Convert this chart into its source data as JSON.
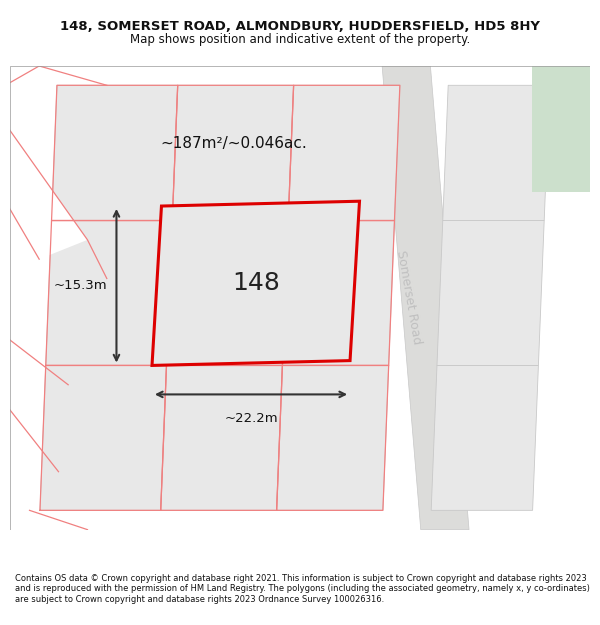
{
  "title_line1": "148, SOMERSET ROAD, ALMONDBURY, HUDDERSFIELD, HD5 8HY",
  "title_line2": "Map shows position and indicative extent of the property.",
  "footer_text": "Contains OS data © Crown copyright and database right 2021. This information is subject to Crown copyright and database rights 2023 and is reproduced with the permission of HM Land Registry. The polygons (including the associated geometry, namely x, y co-ordinates) are subject to Crown copyright and database rights 2023 Ordnance Survey 100026316.",
  "area_label": "~187m²/~0.046ac.",
  "width_label": "~22.2m",
  "height_label": "~15.3m",
  "number_label": "148",
  "road_label": "Somerset Road",
  "bg_color": "#ffffff",
  "parcel_gray": "#e8e8e8",
  "parcel_edge": "#c8c8c8",
  "road_fill": "#dcdcda",
  "road_line": "#c8c8c8",
  "parcel_red": "#f08080",
  "prop_red": "#dd0000",
  "green_fill": "#cce0cc",
  "dim_color": "#333333",
  "text_color": "#111111",
  "road_text_color": "#c0c0c0"
}
